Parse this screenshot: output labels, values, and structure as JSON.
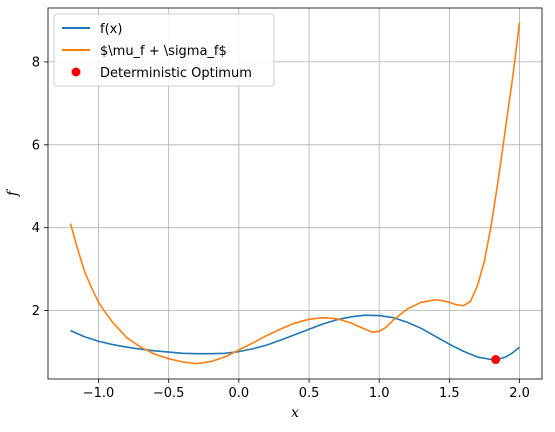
{
  "chart_data": {
    "type": "line",
    "xlabel": "x",
    "ylabel": "f",
    "xlim": [
      -1.36,
      2.16
    ],
    "ylim": [
      0.35,
      9.3
    ],
    "xticks": [
      -1.0,
      -0.5,
      0.0,
      0.5,
      1.0,
      1.5,
      2.0
    ],
    "xtick_labels": [
      "−1.0",
      "−0.5",
      "0.0",
      "0.5",
      "1.0",
      "1.5",
      "2.0"
    ],
    "yticks": [
      2,
      4,
      6,
      8
    ],
    "ytick_labels": [
      "2",
      "4",
      "6",
      "8"
    ],
    "grid": true,
    "legend_position": "top-left",
    "series": [
      {
        "name": "f(x)",
        "kind": "line",
        "color": "#1f77b4",
        "x": [
          -1.2,
          -1.1,
          -1.0,
          -0.9,
          -0.8,
          -0.7,
          -0.6,
          -0.5,
          -0.4,
          -0.3,
          -0.2,
          -0.1,
          0.0,
          0.1,
          0.2,
          0.3,
          0.4,
          0.5,
          0.6,
          0.7,
          0.8,
          0.9,
          1.0,
          1.1,
          1.2,
          1.3,
          1.4,
          1.5,
          1.6,
          1.7,
          1.8,
          1.85,
          1.9,
          1.95,
          2.0
        ],
        "y": [
          1.52,
          1.37,
          1.26,
          1.18,
          1.12,
          1.07,
          1.03,
          1.0,
          0.97,
          0.96,
          0.96,
          0.97,
          1.01,
          1.08,
          1.17,
          1.29,
          1.42,
          1.55,
          1.68,
          1.78,
          1.85,
          1.89,
          1.88,
          1.83,
          1.72,
          1.57,
          1.38,
          1.19,
          1.02,
          0.88,
          0.82,
          0.83,
          0.88,
          0.98,
          1.12
        ]
      },
      {
        "name": "$\\mu_f + \\sigma_f$",
        "kind": "line",
        "color": "#ff7f0e",
        "x": [
          -1.2,
          -1.15,
          -1.1,
          -1.05,
          -1.0,
          -0.95,
          -0.9,
          -0.8,
          -0.7,
          -0.6,
          -0.5,
          -0.4,
          -0.3,
          -0.2,
          -0.1,
          0.0,
          0.1,
          0.2,
          0.3,
          0.4,
          0.5,
          0.6,
          0.7,
          0.8,
          0.9,
          0.95,
          1.0,
          1.05,
          1.1,
          1.2,
          1.3,
          1.4,
          1.45,
          1.5,
          1.55,
          1.6,
          1.65,
          1.7,
          1.75,
          1.8,
          1.85,
          1.9,
          1.95,
          2.0
        ],
        "y": [
          4.1,
          3.5,
          2.95,
          2.55,
          2.2,
          1.95,
          1.72,
          1.35,
          1.12,
          0.95,
          0.84,
          0.76,
          0.72,
          0.77,
          0.88,
          1.05,
          1.22,
          1.4,
          1.56,
          1.7,
          1.79,
          1.83,
          1.8,
          1.7,
          1.55,
          1.48,
          1.5,
          1.6,
          1.77,
          2.04,
          2.2,
          2.26,
          2.24,
          2.2,
          2.14,
          2.12,
          2.22,
          2.6,
          3.2,
          4.1,
          5.2,
          6.4,
          7.6,
          8.95
        ]
      },
      {
        "name": "Deterministic Optimum",
        "kind": "scatter",
        "color": "#ff0000",
        "x": [
          1.83
        ],
        "y": [
          0.82
        ]
      }
    ]
  }
}
